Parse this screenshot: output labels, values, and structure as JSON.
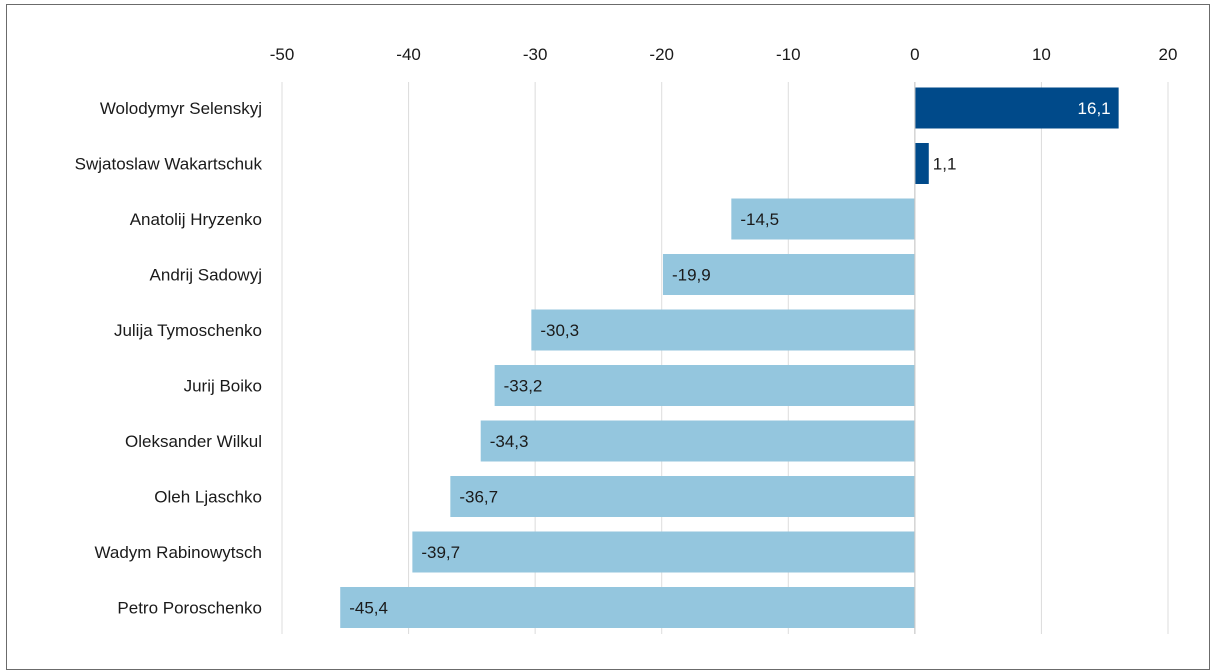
{
  "chart_data": {
    "type": "bar",
    "orientation": "horizontal",
    "title": "",
    "xlabel": "",
    "ylabel": "",
    "xlim": [
      -50,
      20
    ],
    "x_ticks": [
      -50,
      -40,
      -30,
      -20,
      -10,
      0,
      10,
      20
    ],
    "tick_labels": [
      "-50",
      "-40",
      "-30",
      "-20",
      "-10",
      "0",
      "10",
      "20"
    ],
    "x_axis_position": "top",
    "grid": true,
    "legend": "none",
    "categories": [
      "Wolodymyr Selenskyj",
      "Swjatoslaw Wakartschuk",
      "Anatolij Hryzenko",
      "Andrij Sadowyj",
      "Julija Tymoschenko",
      "Jurij Boiko",
      "Oleksander Wilkul",
      "Oleh Ljaschko",
      "Wadym Rabinowytsch",
      "Petro Poroschenko"
    ],
    "values": [
      16.1,
      1.1,
      -14.5,
      -19.9,
      -30.3,
      -33.2,
      -34.3,
      -36.7,
      -39.7,
      -45.4
    ],
    "value_labels": [
      "16,1",
      "1,1",
      "-14,5",
      "-19,9",
      "-30,3",
      "-33,2",
      "-34,3",
      "-36,7",
      "-39,7",
      "-45,4"
    ],
    "colors": {
      "positive": "#004a8a",
      "negative": "#94c6de",
      "grid": "#dcdcdc",
      "label_on_dark": "#ffffff",
      "label_default": "#1a1a1a"
    }
  }
}
